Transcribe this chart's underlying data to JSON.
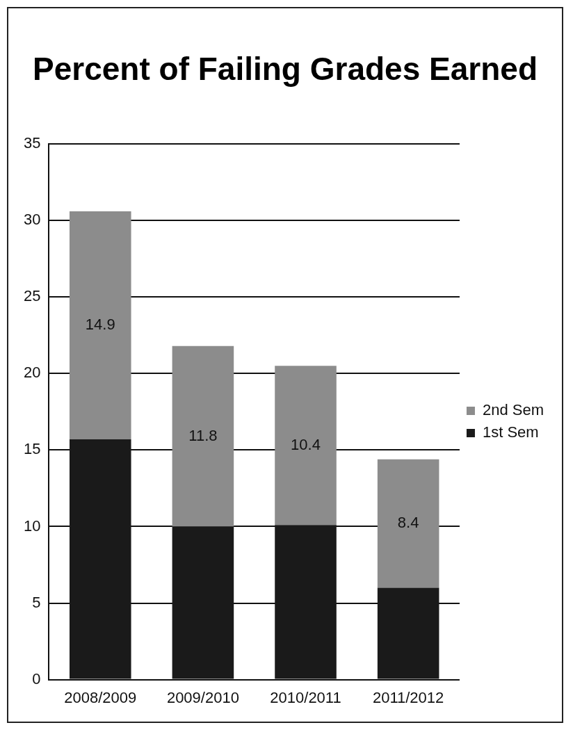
{
  "chart_data": {
    "type": "bar",
    "title": "Percent of Failing Grades Earned",
    "categories": [
      "2008/2009",
      "2009/2010",
      "2010/2011",
      "2011/2012"
    ],
    "stacked": true,
    "series": [
      {
        "name": "1st Sem",
        "color": "#1a1a1a",
        "values": [
          15.7,
          10,
          10.1,
          6
        ]
      },
      {
        "name": "2nd Sem",
        "color": "#8c8c8c",
        "values": [
          14.9,
          11.8,
          10.4,
          8.4
        ],
        "value_labels": [
          "14.9",
          "11.8",
          "10.4",
          "8.4"
        ]
      }
    ],
    "ylim": [
      0,
      35
    ],
    "yticks": [
      0,
      5,
      10,
      15,
      20,
      25,
      30,
      35
    ],
    "grid": "y",
    "legend": "right"
  }
}
